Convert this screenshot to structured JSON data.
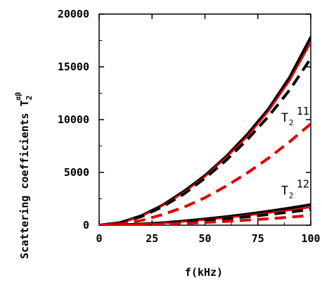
{
  "chart_data": {
    "type": "line",
    "xlabel": "f(kHz)",
    "ylabel_main": "Scattering coefficients T",
    "ylabel_sub": "2",
    "ylabel_sup": "αβ",
    "xlim": [
      0,
      100
    ],
    "ylim": [
      0,
      20000
    ],
    "x_ticks": [
      0,
      25,
      50,
      75,
      100
    ],
    "y_ticks": [
      0,
      5000,
      10000,
      15000,
      20000
    ],
    "x_tick_labels": [
      "0",
      "25",
      "50",
      "75",
      "100"
    ],
    "y_tick_labels": [
      "0",
      "5000",
      "10000",
      "15000",
      "20000"
    ],
    "grid": false,
    "series": [
      {
        "color": "#000000",
        "style": "solid",
        "width": 4,
        "x": [
          0,
          10,
          20,
          30,
          40,
          50,
          60,
          70,
          80,
          90,
          100
        ],
        "y": [
          0,
          250,
          900,
          1900,
          3200,
          4700,
          6500,
          8600,
          11000,
          14000,
          17800
        ]
      },
      {
        "color": "#e00000",
        "style": "solid",
        "width": 2.5,
        "x": [
          0,
          10,
          20,
          30,
          40,
          50,
          60,
          70,
          80,
          90,
          100
        ],
        "y": [
          0,
          240,
          870,
          1850,
          3100,
          4600,
          6400,
          8400,
          10800,
          13700,
          17300
        ]
      },
      {
        "color": "#000000",
        "style": "dashed",
        "width": 4,
        "x": [
          0,
          10,
          20,
          30,
          40,
          50,
          60,
          70,
          80,
          90,
          100
        ],
        "y": [
          0,
          230,
          820,
          1750,
          2950,
          4450,
          6150,
          8100,
          10300,
          12800,
          15800
        ]
      },
      {
        "color": "#e00000",
        "style": "dashed",
        "width": 4,
        "x": [
          0,
          10,
          20,
          30,
          40,
          50,
          60,
          70,
          80,
          90,
          100
        ],
        "y": [
          0,
          120,
          450,
          1000,
          1700,
          2600,
          3700,
          4950,
          6350,
          7900,
          9600
        ]
      },
      {
        "color": "#000000",
        "style": "solid",
        "width": 4,
        "x": [
          0,
          10,
          20,
          30,
          40,
          50,
          60,
          70,
          80,
          90,
          100
        ],
        "y": [
          0,
          30,
          110,
          230,
          390,
          580,
          800,
          1050,
          1320,
          1620,
          1950
        ]
      },
      {
        "color": "#e00000",
        "style": "solid",
        "width": 2.5,
        "x": [
          0,
          10,
          20,
          30,
          40,
          50,
          60,
          70,
          80,
          90,
          100
        ],
        "y": [
          0,
          26,
          95,
          200,
          340,
          510,
          700,
          920,
          1160,
          1420,
          1700
        ]
      },
      {
        "color": "#000000",
        "style": "dashed",
        "width": 4,
        "x": [
          0,
          10,
          20,
          30,
          40,
          50,
          60,
          70,
          80,
          90,
          100
        ],
        "y": [
          0,
          22,
          80,
          170,
          290,
          440,
          610,
          800,
          1010,
          1240,
          1500
        ]
      },
      {
        "color": "#e00000",
        "style": "dashed",
        "width": 4,
        "x": [
          0,
          10,
          20,
          30,
          40,
          50,
          60,
          70,
          80,
          90,
          100
        ],
        "y": [
          0,
          12,
          45,
          100,
          170,
          260,
          360,
          480,
          610,
          760,
          920
        ]
      }
    ],
    "annotations": [
      {
        "main": "T",
        "sub": "2",
        "sup": "11",
        "x": 86,
        "y": 9800
      },
      {
        "main": "T",
        "sub": "2",
        "sup": "12",
        "x": 86,
        "y": 2900
      }
    ]
  }
}
